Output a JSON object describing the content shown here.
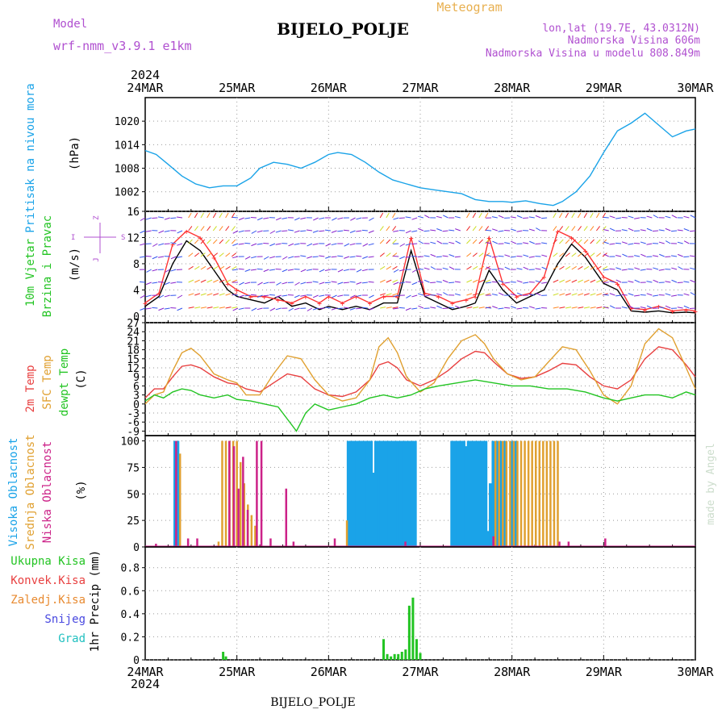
{
  "header": {
    "model_label": "Model",
    "model_name": "wrf-nmm_v3.9.1 e1km",
    "title": "BIJELO_POLJE",
    "meteogram_label": "Meteogram",
    "lonlat": "lon,lat (19.7E, 43.0312N)",
    "altitude": "Nadmorska Visina 606m",
    "model_altitude": "Nadmorska Visina u modelu 808.849m",
    "footer_title": "BIJELO_POLJE",
    "credit": "made by Angel"
  },
  "colors": {
    "pressure": "#1aa3e8",
    "wind_speed": "#000000",
    "gust": "#ff3333",
    "temp2m": "#e84040",
    "sfc_temp": "#e0a030",
    "dewpoint": "#22c422",
    "cloud_high": "#1aa3e8",
    "cloud_mid": "#e0a030",
    "cloud_low": "#cc2288",
    "precip_total": "#22c422",
    "label_purple": "#b050d0",
    "label_orange": "#e8b050"
  },
  "time_axis": {
    "year": "2024",
    "ticks": [
      "24MAR",
      "25MAR",
      "26MAR",
      "27MAR",
      "28MAR",
      "29MAR",
      "30MAR"
    ]
  },
  "chart_data": [
    {
      "type": "line",
      "panel": "pressure",
      "ylabel_parts": [
        "Pritisak na nivou mora",
        "(hPa)"
      ],
      "yticks": [
        1002,
        1008,
        1014,
        1020
      ],
      "ylim": [
        997,
        1026
      ],
      "x_range": [
        0,
        6
      ],
      "series": [
        {
          "x": [
            0,
            0.12,
            0.25,
            0.4,
            0.55,
            0.7,
            0.85,
            1.0,
            1.15,
            1.25,
            1.4,
            1.55,
            1.7,
            1.85,
            2.0,
            2.1,
            2.25,
            2.4,
            2.55,
            2.7,
            2.85,
            3.0,
            3.15,
            3.3,
            3.45,
            3.6,
            3.75,
            3.9,
            4.0,
            4.15,
            4.3,
            4.45,
            4.55,
            4.7,
            4.85,
            5.0,
            5.15,
            5.3,
            5.45,
            5.6,
            5.75,
            5.9,
            6.0
          ],
          "values": [
            1012.5,
            1011.5,
            1009,
            1006,
            1004,
            1003,
            1003.5,
            1003.5,
            1005.5,
            1008,
            1009.5,
            1009,
            1008,
            1009.5,
            1011.5,
            1012,
            1011.5,
            1009.5,
            1007,
            1005,
            1004,
            1003,
            1002.5,
            1002,
            1001.5,
            1000,
            999.5,
            999.5,
            999.3,
            999.7,
            999,
            998.5,
            999.5,
            1002,
            1006,
            1012,
            1017.5,
            1019.5,
            1022,
            1019,
            1016,
            1017.5,
            1018
          ]
        }
      ]
    },
    {
      "type": "line",
      "panel": "wind",
      "ylabel_parts": [
        "10m Vjetar",
        "Brzina i Pravac",
        "(m/s)"
      ],
      "compass_labels": [
        "Z",
        "I",
        "S",
        "J"
      ],
      "yticks": [
        0,
        4,
        8,
        12,
        16
      ],
      "ylim": [
        -1,
        16
      ],
      "x_range": [
        0,
        6
      ],
      "series": [
        {
          "name": "speed",
          "x": [
            0,
            0.15,
            0.3,
            0.45,
            0.6,
            0.75,
            0.9,
            1.0,
            1.15,
            1.3,
            1.45,
            1.6,
            1.75,
            1.9,
            2.0,
            2.15,
            2.3,
            2.45,
            2.6,
            2.75,
            2.9,
            3.05,
            3.2,
            3.35,
            3.5,
            3.6,
            3.75,
            3.9,
            4.05,
            4.2,
            4.35,
            4.5,
            4.65,
            4.8,
            5.0,
            5.15,
            5.3,
            5.45,
            5.6,
            5.75,
            5.9,
            6.0
          ],
          "values": [
            1.5,
            3,
            8,
            11.5,
            10,
            7,
            4,
            3,
            2.5,
            2,
            3,
            1.5,
            2,
            1,
            1.5,
            1,
            1.5,
            1,
            2,
            2,
            10,
            3,
            2,
            1,
            1.5,
            2,
            7,
            4,
            2,
            3,
            4,
            8,
            11,
            9,
            5,
            4,
            0.8,
            0.6,
            0.8,
            0.5,
            0.6,
            0.5
          ]
        },
        {
          "name": "gust",
          "x": [
            0,
            0.15,
            0.3,
            0.45,
            0.6,
            0.75,
            0.9,
            1.0,
            1.15,
            1.3,
            1.45,
            1.6,
            1.75,
            1.9,
            2.0,
            2.15,
            2.3,
            2.45,
            2.6,
            2.75,
            2.9,
            3.05,
            3.2,
            3.35,
            3.5,
            3.6,
            3.75,
            3.9,
            4.05,
            4.2,
            4.35,
            4.5,
            4.65,
            4.8,
            5.0,
            5.15,
            5.3,
            5.45,
            5.6,
            5.75,
            5.9,
            6.0
          ],
          "values": [
            2,
            3.5,
            11,
            13,
            12,
            9,
            5,
            4,
            3,
            3,
            2.5,
            2,
            3,
            2,
            3,
            2,
            3,
            2,
            3,
            3,
            12,
            3.5,
            3,
            2,
            2.5,
            3,
            12,
            5,
            3,
            3.5,
            6,
            13,
            12,
            10,
            6,
            5,
            1.2,
            1,
            1.5,
            0.8,
            1,
            0.8
          ]
        }
      ]
    },
    {
      "type": "line",
      "panel": "temperature",
      "ylabel_parts": [
        "2m Temp",
        "SFC Temp",
        "dewpt Temp",
        "(C)"
      ],
      "yticks": [
        -9,
        -6,
        -3,
        0,
        3,
        6,
        9,
        12,
        15,
        18,
        21,
        24,
        27
      ],
      "ylim": [
        -10.5,
        27
      ],
      "x_range": [
        0,
        6
      ],
      "series": [
        {
          "name": "2m Temp",
          "x": [
            0,
            0.1,
            0.2,
            0.3,
            0.4,
            0.5,
            0.6,
            0.75,
            0.9,
            1.0,
            1.1,
            1.25,
            1.4,
            1.55,
            1.7,
            1.85,
            2.0,
            2.15,
            2.3,
            2.45,
            2.55,
            2.65,
            2.75,
            2.85,
            3.0,
            3.15,
            3.3,
            3.45,
            3.6,
            3.7,
            3.8,
            3.95,
            4.1,
            4.25,
            4.4,
            4.55,
            4.7,
            4.85,
            5.0,
            5.15,
            5.3,
            5.45,
            5.6,
            5.75,
            5.9,
            6.0
          ],
          "values": [
            2,
            5,
            5,
            9,
            12.5,
            13,
            12,
            9,
            7,
            6.5,
            5,
            4,
            7,
            10,
            9,
            5,
            3,
            2.5,
            4,
            8,
            13,
            14,
            12,
            8,
            6,
            8,
            11,
            15,
            17.5,
            17,
            14,
            10,
            8.5,
            9,
            11,
            13.5,
            13,
            9,
            6,
            5,
            8,
            15,
            19,
            18,
            13,
            9
          ]
        },
        {
          "name": "SFC Temp",
          "x": [
            0,
            0.1,
            0.2,
            0.3,
            0.4,
            0.5,
            0.6,
            0.75,
            0.9,
            1.0,
            1.1,
            1.25,
            1.4,
            1.55,
            1.7,
            1.85,
            2.0,
            2.15,
            2.3,
            2.45,
            2.55,
            2.65,
            2.75,
            2.85,
            3.0,
            3.15,
            3.3,
            3.45,
            3.6,
            3.7,
            3.8,
            3.95,
            4.1,
            4.25,
            4.4,
            4.55,
            4.7,
            4.85,
            5.0,
            5.15,
            5.3,
            5.45,
            5.6,
            5.75,
            5.9,
            6.0
          ],
          "values": [
            0,
            3,
            4,
            11,
            17,
            18.5,
            16,
            10,
            8,
            7,
            3,
            3,
            10,
            16,
            15,
            8,
            3,
            1,
            2,
            8,
            19,
            22,
            17,
            9,
            4,
            7,
            15,
            21,
            23,
            20,
            15,
            10,
            8,
            9,
            14,
            19,
            18,
            11,
            3,
            0,
            6,
            20,
            25,
            22,
            12,
            5
          ]
        },
        {
          "name": "dewpt Temp",
          "x": [
            0,
            0.1,
            0.2,
            0.3,
            0.4,
            0.5,
            0.6,
            0.75,
            0.9,
            1.0,
            1.15,
            1.3,
            1.45,
            1.55,
            1.65,
            1.75,
            1.85,
            2.0,
            2.15,
            2.3,
            2.45,
            2.6,
            2.75,
            2.9,
            3.05,
            3.2,
            3.4,
            3.6,
            3.8,
            4.0,
            4.2,
            4.4,
            4.6,
            4.8,
            5.0,
            5.15,
            5.3,
            5.45,
            5.6,
            5.75,
            5.9,
            6.0
          ],
          "values": [
            1,
            3,
            2,
            4,
            5,
            4.5,
            3,
            2,
            3,
            1.5,
            1,
            0,
            -1,
            -5,
            -9,
            -3,
            0,
            -2,
            -1,
            0,
            2,
            3,
            2,
            3,
            5,
            6,
            7,
            8,
            7,
            6,
            6,
            5,
            5,
            4,
            2,
            1,
            2,
            3,
            3,
            2,
            4,
            3
          ]
        }
      ]
    },
    {
      "type": "bar",
      "panel": "clouds",
      "ylabel_parts": [
        "Visoka Oblacnost",
        "Srednja Oblacnost",
        "Niska Oblacnost",
        "(%)"
      ],
      "yticks": [
        0,
        25,
        50,
        75,
        100
      ],
      "ylim": [
        0,
        105
      ],
      "x_range": [
        0,
        6
      ],
      "series": [
        {
          "name": "Visoka Oblacnost",
          "x": [
            0.33,
            0.35,
            2.22,
            2.25,
            2.28,
            2.31,
            2.34,
            2.37,
            2.4,
            2.43,
            2.46,
            2.49,
            2.52,
            2.55,
            2.58,
            2.61,
            2.64,
            2.67,
            2.7,
            2.73,
            2.76,
            2.79,
            2.82,
            2.85,
            2.88,
            2.91,
            2.94,
            3.35,
            3.38,
            3.41,
            3.44,
            3.47,
            3.5,
            3.53,
            3.56,
            3.59,
            3.62,
            3.65,
            3.68,
            3.71,
            3.74,
            3.77,
            3.8,
            3.83,
            3.86,
            3.89,
            3.92,
            4.0,
            4.03
          ],
          "values": [
            100,
            100,
            100,
            100,
            100,
            100,
            100,
            100,
            100,
            100,
            100,
            70,
            100,
            100,
            100,
            100,
            100,
            100,
            100,
            100,
            100,
            100,
            100,
            100,
            100,
            100,
            100,
            100,
            100,
            100,
            100,
            100,
            95,
            100,
            100,
            100,
            100,
            100,
            100,
            100,
            15,
            60,
            100,
            100,
            100,
            100,
            100,
            100,
            100
          ]
        },
        {
          "name": "Srednja Oblacnost",
          "x": [
            0.38,
            0.8,
            0.84,
            0.88,
            0.92,
            0.96,
            1.0,
            1.04,
            1.08,
            1.12,
            1.16,
            1.2,
            2.2,
            3.82,
            3.86,
            3.9,
            3.94,
            3.98,
            4.02,
            4.06,
            4.1,
            4.14,
            4.18,
            4.22,
            4.26,
            4.3,
            4.34,
            4.38,
            4.42,
            4.46,
            4.5
          ],
          "values": [
            88,
            5,
            100,
            100,
            100,
            100,
            100,
            80,
            60,
            40,
            30,
            20,
            25,
            100,
            100,
            100,
            100,
            100,
            100,
            100,
            100,
            100,
            100,
            100,
            100,
            100,
            100,
            100,
            100,
            100,
            100
          ]
        },
        {
          "name": "Niska Oblacnost",
          "x": [
            0.1,
            0.32,
            0.45,
            0.55,
            0.9,
            0.95,
            1.0,
            1.05,
            1.1,
            1.2,
            1.25,
            1.35,
            1.52,
            1.6,
            2.05,
            2.82,
            3.78,
            4.5,
            4.6,
            5.0
          ],
          "values": [
            3,
            100,
            8,
            8,
            100,
            95,
            55,
            85,
            35,
            100,
            100,
            8,
            55,
            5,
            8,
            5,
            10,
            5,
            5,
            8
          ]
        }
      ]
    },
    {
      "type": "bar",
      "panel": "precipitation",
      "ylabel_parts": [
        "1hr Precip (mm)"
      ],
      "legend": [
        "Ukupna Kisa",
        "Konvek.Kisa",
        "Zaledj.Kisa",
        "Snijeg",
        "Grad"
      ],
      "legend_colors": [
        "#22c422",
        "#e84040",
        "#e88a30",
        "#4848e0",
        "#20c0c0"
      ],
      "yticks": [
        0,
        0.2,
        0.4,
        0.6,
        0.8
      ],
      "ylim": [
        0,
        0.98
      ],
      "x_range": [
        0,
        6
      ],
      "series": [
        {
          "name": "Ukupna Kisa",
          "x": [
            0.85,
            0.88,
            2.6,
            2.64,
            2.68,
            2.72,
            2.76,
            2.8,
            2.84,
            2.88,
            2.92,
            2.96,
            3.0
          ],
          "values": [
            0.07,
            0.03,
            0.18,
            0.05,
            0.03,
            0.05,
            0.05,
            0.07,
            0.09,
            0.47,
            0.54,
            0.18,
            0.06
          ]
        }
      ]
    }
  ]
}
